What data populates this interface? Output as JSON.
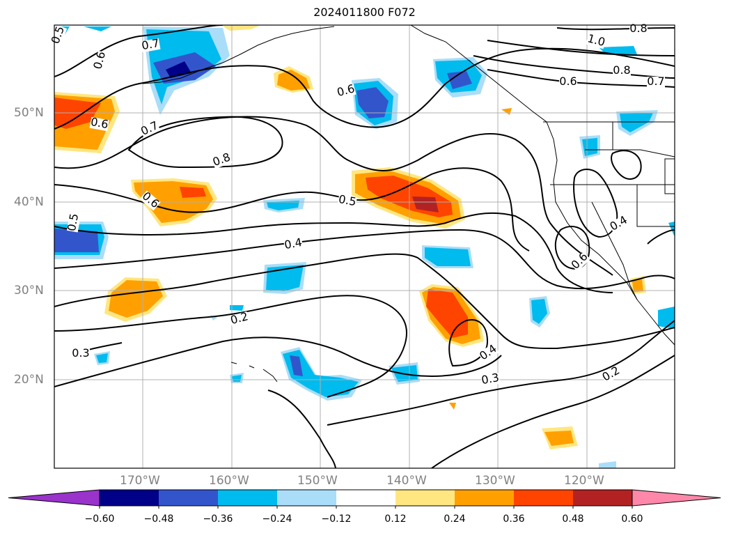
{
  "title": "2024011800 F072",
  "lat_labels": [
    "50°N",
    "40°N",
    "30°N",
    "20°N"
  ],
  "lon_labels": [
    "170°W",
    "160°W",
    "150°W",
    "140°W",
    "130°W",
    "120°W"
  ],
  "colorbar": {
    "ticks": [
      "−0.60",
      "−0.48",
      "−0.36",
      "−0.24",
      "−0.12",
      "0.12",
      "0.24",
      "0.36",
      "0.48",
      "0.60"
    ],
    "colors": [
      "#9933cc",
      "#000088",
      "#3355cc",
      "#00bbee",
      "#aaddf8",
      "#ffffff",
      "#ffe680",
      "#ffa000",
      "#ff4400",
      "#b22222",
      "#ff88aa"
    ]
  },
  "contour_labels": [
    "0.5",
    "0.6",
    "0.7",
    "0.6",
    "0.7",
    "0.8",
    "0.6",
    "0.5",
    "0.5",
    "0.4",
    "0.2",
    "0.3",
    "0.4",
    "0.3",
    "0.2",
    "0.6",
    "0.4",
    "1.0",
    "0.8",
    "0.8",
    "0.7",
    "0.6",
    "0.6"
  ],
  "shading_colors": {
    "light_blue": "#aaddf8",
    "blue": "#00bbee",
    "mid_blue": "#3355cc",
    "navy": "#000088",
    "yellow": "#ffe680",
    "orange": "#ffa000",
    "red_orange": "#ff4400",
    "dark_red": "#b22222"
  }
}
